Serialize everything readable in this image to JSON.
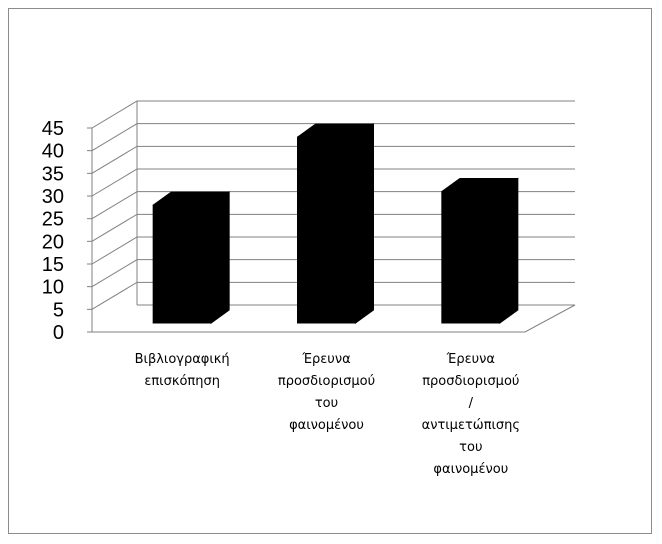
{
  "chart_data": {
    "type": "bar",
    "style": "3d-column",
    "categories": [
      "Βιβλιογραφική επισκόπηση",
      "Έρευνα προσδιορισμού του φαινομένου",
      "Έρευνα προσδιορισμού / αντιμετώπισης του φαινομένου"
    ],
    "category_lines": [
      [
        "Βιβλιογραφική",
        "επισκόπηση"
      ],
      [
        "Έρευνα",
        "προσδιορισμού",
        "του",
        "φαινομένου"
      ],
      [
        "Έρευνα",
        "προσδιορισμού",
        "/",
        "αντιμετώπισης",
        "του",
        "φαινομένου"
      ]
    ],
    "values": [
      26,
      41,
      29
    ],
    "ylim": [
      0,
      45
    ],
    "yticks": [
      0,
      5,
      10,
      15,
      20,
      25,
      30,
      35,
      40,
      45
    ],
    "title": "",
    "xlabel": "",
    "ylabel": "",
    "grid": true,
    "legend": "none",
    "bar_color": "#000000",
    "grid_color": "#808080"
  }
}
